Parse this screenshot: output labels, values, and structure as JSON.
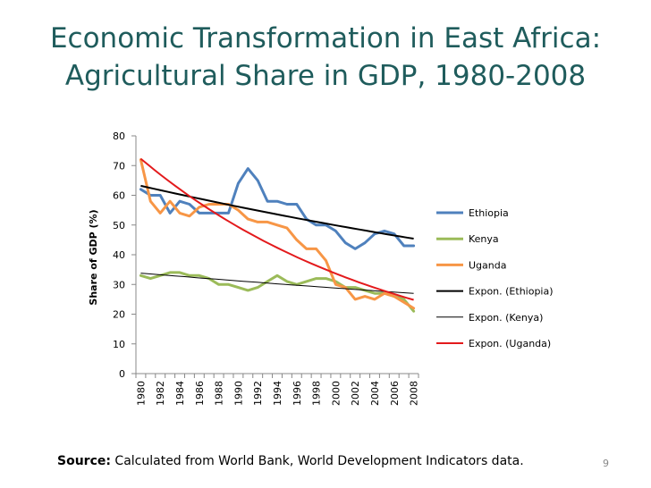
{
  "slide": {
    "title_line1": "Economic Transformation in East Africa:",
    "title_line2": "Agricultural Share in GDP, 1980-2008",
    "source_label": "Source:",
    "source_text": "Calculated from World Bank, World Development Indicators data.",
    "page_number": "9"
  },
  "chart_data": {
    "type": "line",
    "title": "",
    "xlabel": "",
    "ylabel": "Share of GDP (%)",
    "ylim": [
      0,
      80
    ],
    "yticks": [
      0,
      10,
      20,
      30,
      40,
      50,
      60,
      70,
      80
    ],
    "x": [
      1980,
      1981,
      1982,
      1983,
      1984,
      1985,
      1986,
      1987,
      1988,
      1989,
      1990,
      1991,
      1992,
      1993,
      1994,
      1995,
      1996,
      1997,
      1998,
      1999,
      2000,
      2001,
      2002,
      2003,
      2004,
      2005,
      2006,
      2007,
      2008
    ],
    "xtick_labels": [
      "1980",
      "1982",
      "1984",
      "1986",
      "1988",
      "1990",
      "1992",
      "1994",
      "1996",
      "1998",
      "2000",
      "2002",
      "2004",
      "2006",
      "2008"
    ],
    "grid": false,
    "legend_position": "right",
    "series": [
      {
        "name": "Ethiopia",
        "color": "#4f81bd",
        "kind": "data",
        "values": [
          62,
          60,
          60,
          54,
          58,
          57,
          54,
          54,
          54,
          54,
          64,
          69,
          65,
          58,
          58,
          57,
          57,
          52,
          50,
          50,
          48,
          44,
          42,
          44,
          47,
          48,
          47,
          43,
          43
        ]
      },
      {
        "name": "Kenya",
        "color": "#9bbb59",
        "kind": "data",
        "values": [
          33,
          32,
          33,
          34,
          34,
          33,
          33,
          32,
          30,
          30,
          29,
          28,
          29,
          31,
          33,
          31,
          30,
          31,
          32,
          32,
          31,
          29,
          29,
          28,
          27,
          27,
          26,
          25,
          21
        ]
      },
      {
        "name": "Uganda",
        "color": "#f79646",
        "kind": "data",
        "values": [
          72,
          58,
          54,
          58,
          54,
          53,
          56,
          57,
          57,
          57,
          55,
          52,
          51,
          51,
          50,
          49,
          45,
          42,
          42,
          38,
          30,
          29,
          25,
          26,
          25,
          27,
          26,
          24,
          22
        ]
      },
      {
        "name": "Expon. (Ethiopia)",
        "color": "#000000",
        "kind": "trend",
        "start": 63.2,
        "end": 45.4
      },
      {
        "name": "Expon. (Kenya)",
        "color": "#000000",
        "kind": "trend",
        "start": 33.8,
        "end": 27.0
      },
      {
        "name": "Expon. (Uganda)",
        "color": "#e31a1c",
        "kind": "trend",
        "start": 72.3,
        "end": 24.8
      }
    ]
  }
}
